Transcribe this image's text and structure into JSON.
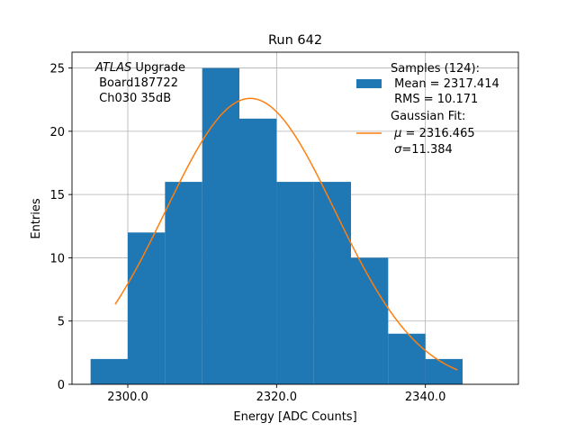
{
  "chart_data": {
    "type": "bar",
    "title": "Run 642",
    "xlabel": "Energy [ADC Counts]",
    "ylabel": "Entries",
    "xlim": [
      2292.5,
      2352.5
    ],
    "ylim": [
      0,
      26.25
    ],
    "grid": true,
    "x_ticks": [
      2300.0,
      2320.0,
      2340.0
    ],
    "x_tick_labels": [
      "2300.0",
      "2320.0",
      "2340.0"
    ],
    "y_ticks": [
      0,
      5,
      10,
      15,
      20,
      25
    ],
    "y_tick_labels": [
      "0",
      "5",
      "10",
      "15",
      "20",
      "25"
    ],
    "histogram": {
      "name": "Samples",
      "color": "#1f77b4",
      "bin_edges": [
        2295,
        2300,
        2305,
        2310,
        2315,
        2320,
        2325,
        2330,
        2335,
        2340,
        2345
      ],
      "counts": [
        2,
        12,
        16,
        25,
        21,
        16,
        16,
        10,
        4,
        2
      ]
    },
    "fit": {
      "name": "Gaussian Fit",
      "color": "#ff7f0e",
      "x_range": [
        2298.3,
        2344.3
      ],
      "amplitude": 22.6,
      "mu": 2316.465,
      "sigma": 11.384
    },
    "annotation": {
      "italic": "ATLAS",
      "line1_rest": " Upgrade",
      "line2": " Board187722",
      "line3": " Ch030 35dB"
    },
    "legend": {
      "placement": "top-right",
      "samples_line1": "Samples (124):",
      "samples_line2": " Mean = 2317.414",
      "samples_line3": " RMS = 10.171",
      "fit_line1": "Gaussian Fit:",
      "fit_line2_symbol": "μ",
      "fit_line2_rest": " = 2316.465",
      "fit_line3_symbol": "σ",
      "fit_line3_rest": "=11.384"
    }
  }
}
